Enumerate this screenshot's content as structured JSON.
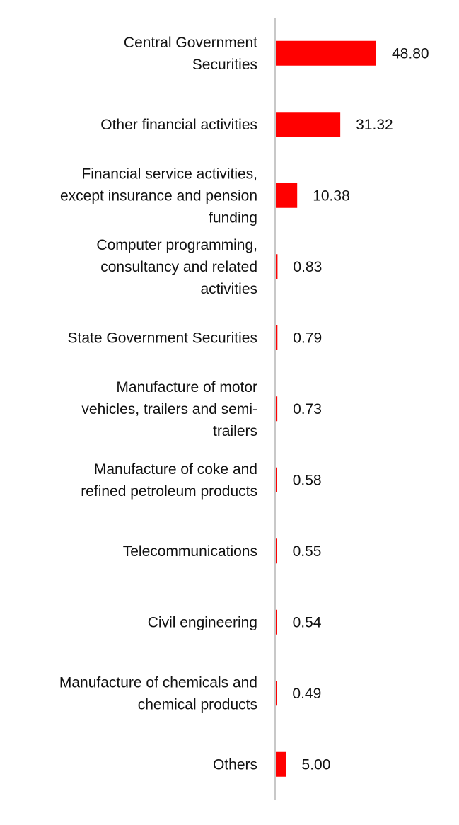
{
  "chart_data": {
    "type": "bar",
    "orientation": "horizontal",
    "categories": [
      [
        "Central Government",
        "Securities"
      ],
      [
        "Other financial activities"
      ],
      [
        "Financial service activities,",
        "except insurance and pension",
        "funding"
      ],
      [
        "Computer programming,",
        "consultancy and related",
        "activities"
      ],
      [
        "State Government Securities"
      ],
      [
        "Manufacture of motor",
        "vehicles, trailers and semi-",
        "trailers"
      ],
      [
        "Manufacture of coke and",
        "refined petroleum products"
      ],
      [
        "Telecommunications"
      ],
      [
        "Civil engineering"
      ],
      [
        "Manufacture of chemicals and",
        "chemical products"
      ],
      [
        "Others"
      ]
    ],
    "values": [
      48.8,
      31.32,
      10.38,
      0.83,
      0.79,
      0.73,
      0.58,
      0.55,
      0.54,
      0.49,
      5.0
    ],
    "value_labels": [
      "48.80",
      "31.32",
      "10.38",
      "0.83",
      "0.79",
      "0.73",
      "0.58",
      "0.55",
      "0.54",
      "0.49",
      "5.00"
    ],
    "title": "",
    "xlabel": "",
    "ylabel": "",
    "xlim": [
      0,
      105
    ],
    "bar_color": "#ff0000",
    "axis_color": "#c8c8c8",
    "grid": false,
    "legend": "none"
  }
}
